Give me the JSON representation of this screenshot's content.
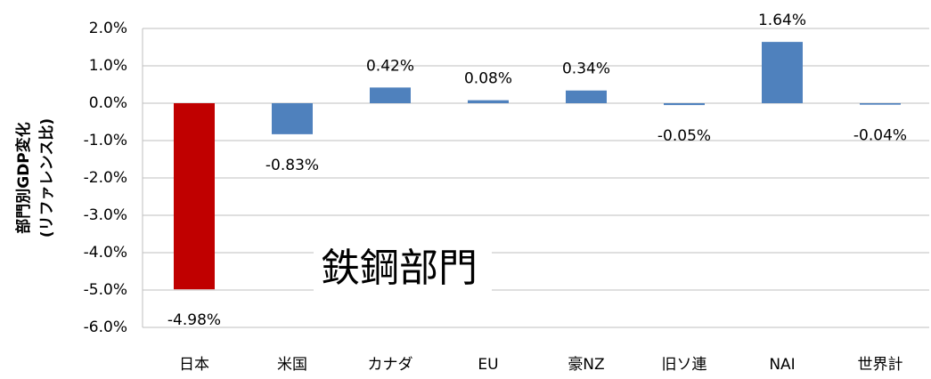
{
  "chart_data": {
    "type": "bar",
    "y_axis_label": [
      "部門別GDP変化",
      "(リファレンス比)"
    ],
    "annotation": "鉄鋼部門",
    "categories": [
      "日本",
      "米国",
      "カナダ",
      "EU",
      "豪NZ",
      "旧ソ連",
      "NAI",
      "世界計"
    ],
    "values": [
      -4.98,
      -0.83,
      0.42,
      0.08,
      0.34,
      -0.05,
      1.64,
      -0.04
    ],
    "value_labels": [
      "-4.98%",
      "-0.83%",
      "0.42%",
      "0.08%",
      "0.34%",
      "-0.05%",
      "1.64%",
      "-0.04%"
    ],
    "colors": [
      "#c00000",
      "#4f81bd",
      "#4f81bd",
      "#4f81bd",
      "#4f81bd",
      "#4f81bd",
      "#4f81bd",
      "#4f81bd"
    ],
    "ylim": [
      -6,
      2
    ],
    "yticks": [
      {
        "value": 2,
        "label": "2.0%"
      },
      {
        "value": 1,
        "label": "1.0%"
      },
      {
        "value": 0,
        "label": "0.0%"
      },
      {
        "value": -1,
        "label": "-1.0%"
      },
      {
        "value": -2,
        "label": "-2.0%"
      },
      {
        "value": -3,
        "label": "-3.0%"
      },
      {
        "value": -4,
        "label": "-4.0%"
      },
      {
        "value": -5,
        "label": "-5.0%"
      },
      {
        "value": -6,
        "label": "-6.0%"
      }
    ],
    "grid": true
  }
}
